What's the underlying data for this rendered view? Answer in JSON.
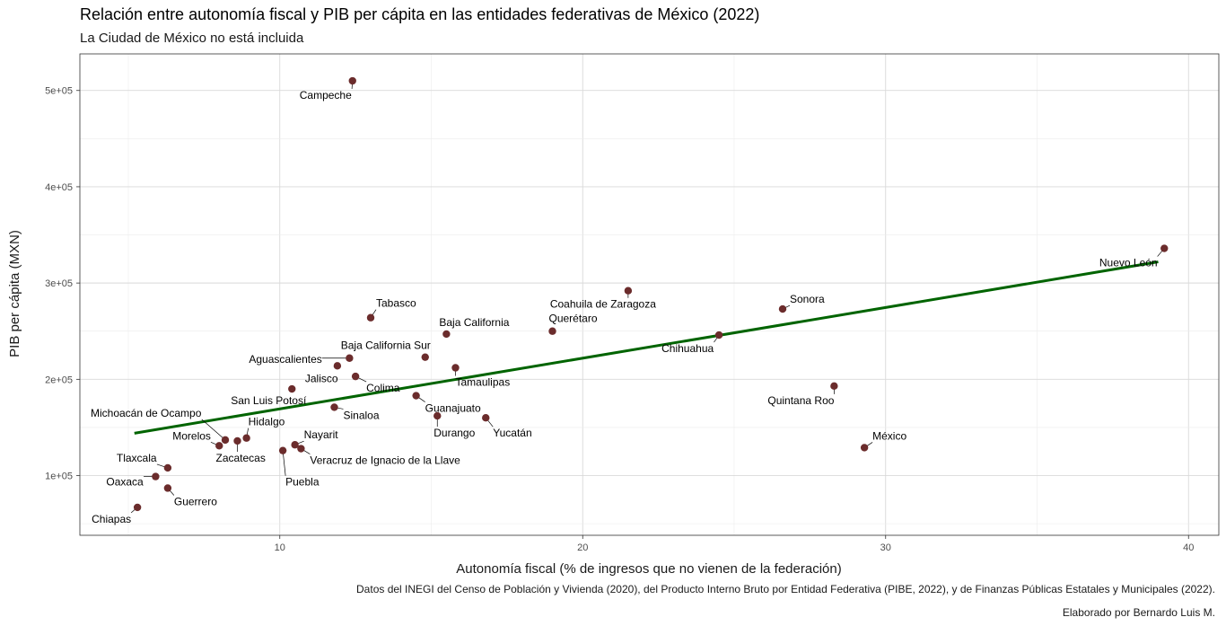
{
  "chart_data": {
    "type": "scatter",
    "title": "Relación entre autonomía fiscal y PIB per cápita en las entidades federativas de México (2022)",
    "subtitle": "La Ciudad de México no está incluida",
    "xlabel": "Autonomía fiscal (% de ingresos que no vienen de la federación)",
    "ylabel": "PIB per cápita (MXN)",
    "xlim": [
      3.4,
      41.0
    ],
    "ylim": [
      38000,
      538000
    ],
    "x_ticks": [
      10,
      20,
      30,
      40
    ],
    "x_tick_labels": [
      "10",
      "20",
      "30",
      "40"
    ],
    "y_ticks": [
      100000,
      200000,
      300000,
      400000,
      500000
    ],
    "y_tick_labels": [
      "1e+05",
      "2e+05",
      "3e+05",
      "4e+05",
      "5e+05"
    ],
    "grid": true,
    "point_color": "#6b2c2c",
    "trend_color": "#006400",
    "trend_line": {
      "x": [
        5.2,
        39.0
      ],
      "y": [
        144000,
        322000
      ]
    },
    "points": [
      {
        "name": "Campeche",
        "x": 12.4,
        "y": 510000
      },
      {
        "name": "Nuevo León",
        "x": 39.2,
        "y": 336000
      },
      {
        "name": "Coahuila de Zaragoza",
        "x": 21.5,
        "y": 292000
      },
      {
        "name": "Sonora",
        "x": 26.6,
        "y": 273000
      },
      {
        "name": "Tabasco",
        "x": 13.0,
        "y": 264000
      },
      {
        "name": "Querétaro",
        "x": 19.0,
        "y": 250000
      },
      {
        "name": "Baja California",
        "x": 15.5,
        "y": 247000
      },
      {
        "name": "Chihuahua",
        "x": 24.5,
        "y": 246000
      },
      {
        "name": "Baja California Sur",
        "x": 14.8,
        "y": 223000
      },
      {
        "name": "Aguascalientes",
        "x": 12.3,
        "y": 222000
      },
      {
        "name": "Jalisco",
        "x": 11.9,
        "y": 214000
      },
      {
        "name": "Tamaulipas",
        "x": 15.8,
        "y": 212000
      },
      {
        "name": "Colima",
        "x": 12.5,
        "y": 203000
      },
      {
        "name": "Quintana Roo",
        "x": 28.3,
        "y": 193000
      },
      {
        "name": "San Luis Potosí",
        "x": 10.4,
        "y": 190000
      },
      {
        "name": "Guanajuato",
        "x": 14.5,
        "y": 183000
      },
      {
        "name": "Sinaloa",
        "x": 11.8,
        "y": 171000
      },
      {
        "name": "Durango",
        "x": 15.2,
        "y": 162000
      },
      {
        "name": "Yucatán",
        "x": 16.8,
        "y": 160000
      },
      {
        "name": "Michoacán de Ocampo",
        "x": 8.2,
        "y": 137000
      },
      {
        "name": "Hidalgo",
        "x": 8.9,
        "y": 139000
      },
      {
        "name": "Zacatecas",
        "x": 8.6,
        "y": 136000
      },
      {
        "name": "Morelos",
        "x": 8.0,
        "y": 131000
      },
      {
        "name": "Nayarit",
        "x": 10.5,
        "y": 132000
      },
      {
        "name": "Veracruz de Ignacio de la Llave",
        "x": 10.7,
        "y": 128000
      },
      {
        "name": "México",
        "x": 29.3,
        "y": 129000
      },
      {
        "name": "Puebla",
        "x": 10.1,
        "y": 126000
      },
      {
        "name": "Tlaxcala",
        "x": 6.3,
        "y": 108000
      },
      {
        "name": "Oaxaca",
        "x": 5.9,
        "y": 99000
      },
      {
        "name": "Guerrero",
        "x": 6.3,
        "y": 87000
      },
      {
        "name": "Chiapas",
        "x": 5.3,
        "y": 67000
      }
    ]
  },
  "caption": {
    "source": "Datos del INEGI del Censo de Población y Vivienda (2020), del Producto Interno Bruto por Entidad Federativa (PIBE, 2022), y de Finanzas Públicas Estatales y Municipales (2022).",
    "author": "Elaborado por Bernardo Luis M."
  }
}
